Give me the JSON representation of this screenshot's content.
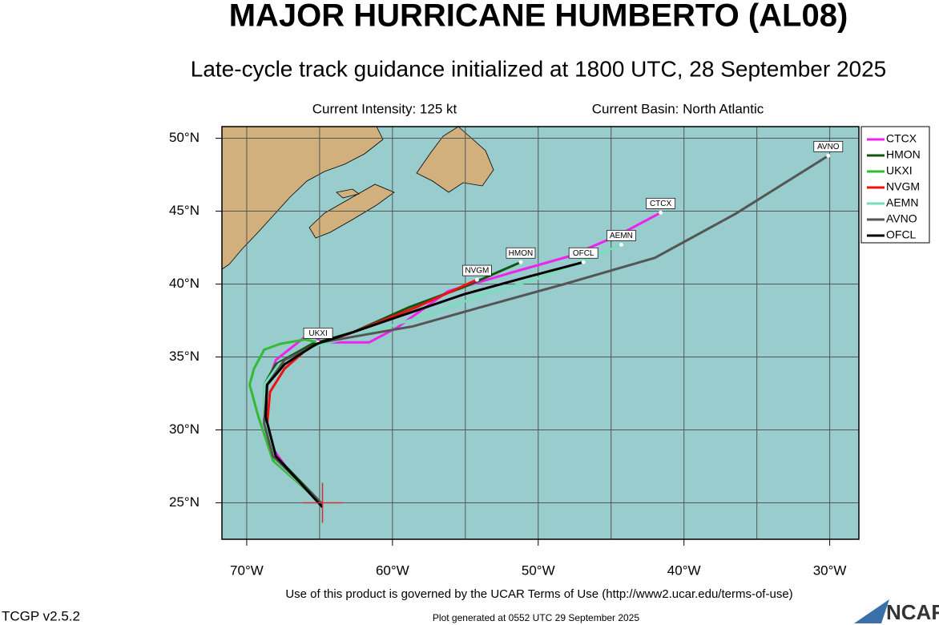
{
  "chart_data": {
    "type": "track-map",
    "title": "MAJOR HURRICANE HUMBERTO (AL08)",
    "subtitle": "Late-cycle track guidance initialized at 1800 UTC, 28 September 2025",
    "intensity": "Current Intensity: 125 kt",
    "basin": "Current Basin: North Atlantic",
    "xlim": [
      -71.7,
      -28.0
    ],
    "ylim": [
      22.5,
      50.8
    ],
    "xticks": [
      {
        "value": -70,
        "label": "70°W"
      },
      {
        "value": -60,
        "label": "60°W"
      },
      {
        "value": -50,
        "label": "50°W"
      },
      {
        "value": -40,
        "label": "40°W"
      },
      {
        "value": -30,
        "label": "30°W"
      }
    ],
    "xminor": [
      -65,
      -55,
      -45,
      -35
    ],
    "yticks": [
      {
        "value": 25,
        "label": "25°N"
      },
      {
        "value": 30,
        "label": "30°N"
      },
      {
        "value": 35,
        "label": "35°N"
      },
      {
        "value": 40,
        "label": "40°N"
      },
      {
        "value": 45,
        "label": "45°N"
      },
      {
        "value": 50,
        "label": "50°N"
      }
    ],
    "grid": true,
    "current_position": {
      "x": -64.8,
      "y": 25.0,
      "color": "#cc3333"
    },
    "series": [
      {
        "name": "CTCX",
        "color": "#ee22ee",
        "x": [
          -64.8,
          -66.6,
          -68.2,
          -68.8,
          -68.6,
          -68.0,
          -66.6,
          -65.6,
          -64.9,
          -61.6,
          -59.7,
          -56.2,
          -51.8,
          -47.9,
          -44.6,
          -41.6
        ],
        "y": [
          24.9,
          26.5,
          28.7,
          30.9,
          33.1,
          34.8,
          35.9,
          36.7,
          36.0,
          36.0,
          37.0,
          39.5,
          40.8,
          41.9,
          43.3,
          44.9
        ]
      },
      {
        "name": "HMON",
        "color": "#115511",
        "x": [
          -64.8,
          -68.0,
          -68.8,
          -68.8,
          -68.0,
          -65.5,
          -62.7,
          -58.9,
          -55.1,
          -51.2
        ],
        "y": [
          24.9,
          28.2,
          30.4,
          33.1,
          34.5,
          35.9,
          36.7,
          38.4,
          39.8,
          41.5
        ]
      },
      {
        "name": "UKXI",
        "color": "#33bb33",
        "x": [
          -64.8,
          -68.2,
          -69.2,
          -69.8,
          -69.5,
          -68.8,
          -67.7,
          -66.0,
          -65.1
        ],
        "y": [
          24.9,
          27.9,
          30.9,
          33.1,
          34.2,
          35.5,
          35.9,
          36.2,
          36.0
        ]
      },
      {
        "name": "NVGM",
        "color": "#ee1111",
        "x": [
          -64.8,
          -68.0,
          -68.6,
          -68.4,
          -67.4,
          -65.8,
          -62.7,
          -58.4,
          -54.2
        ],
        "y": [
          24.9,
          27.9,
          30.4,
          32.6,
          34.2,
          35.6,
          36.7,
          38.4,
          40.3
        ]
      },
      {
        "name": "AEMN",
        "color": "#77ddbb",
        "x": [
          -64.8,
          -68.0,
          -68.8,
          -68.8,
          -67.8,
          -65.5,
          -62.7,
          -57.8,
          -54.0,
          -49.6,
          -44.3
        ],
        "y": [
          24.9,
          27.9,
          30.9,
          33.1,
          34.5,
          35.7,
          36.4,
          37.8,
          39.2,
          40.5,
          42.7
        ]
      },
      {
        "name": "AVNO",
        "color": "#555555",
        "x": [
          -64.8,
          -68.2,
          -68.8,
          -68.6,
          -67.4,
          -64.9,
          -58.6,
          -54.0,
          -48.2,
          -42.0,
          -36.5,
          -30.1
        ],
        "y": [
          24.9,
          28.2,
          30.4,
          33.1,
          34.8,
          36.0,
          37.1,
          38.4,
          40.0,
          41.8,
          44.8,
          48.8
        ]
      },
      {
        "name": "OFCL",
        "color": "#000000",
        "x": [
          -64.8,
          -68.0,
          -68.7,
          -68.6,
          -67.4,
          -65.2,
          -62.7,
          -59.5,
          -55.1,
          -50.7,
          -46.9
        ],
        "y": [
          24.7,
          28.2,
          30.9,
          33.1,
          34.5,
          35.9,
          36.7,
          37.8,
          39.3,
          40.5,
          41.5
        ]
      }
    ]
  },
  "footer": {
    "terms": "Use of this product is governed by the UCAR Terms of Use (http://www2.ucar.edu/terms-of-use)",
    "version": "TCGP v2.5.2",
    "generated": "Plot generated at 0552 UTC   29 September 2025",
    "logo": "NCAR"
  }
}
